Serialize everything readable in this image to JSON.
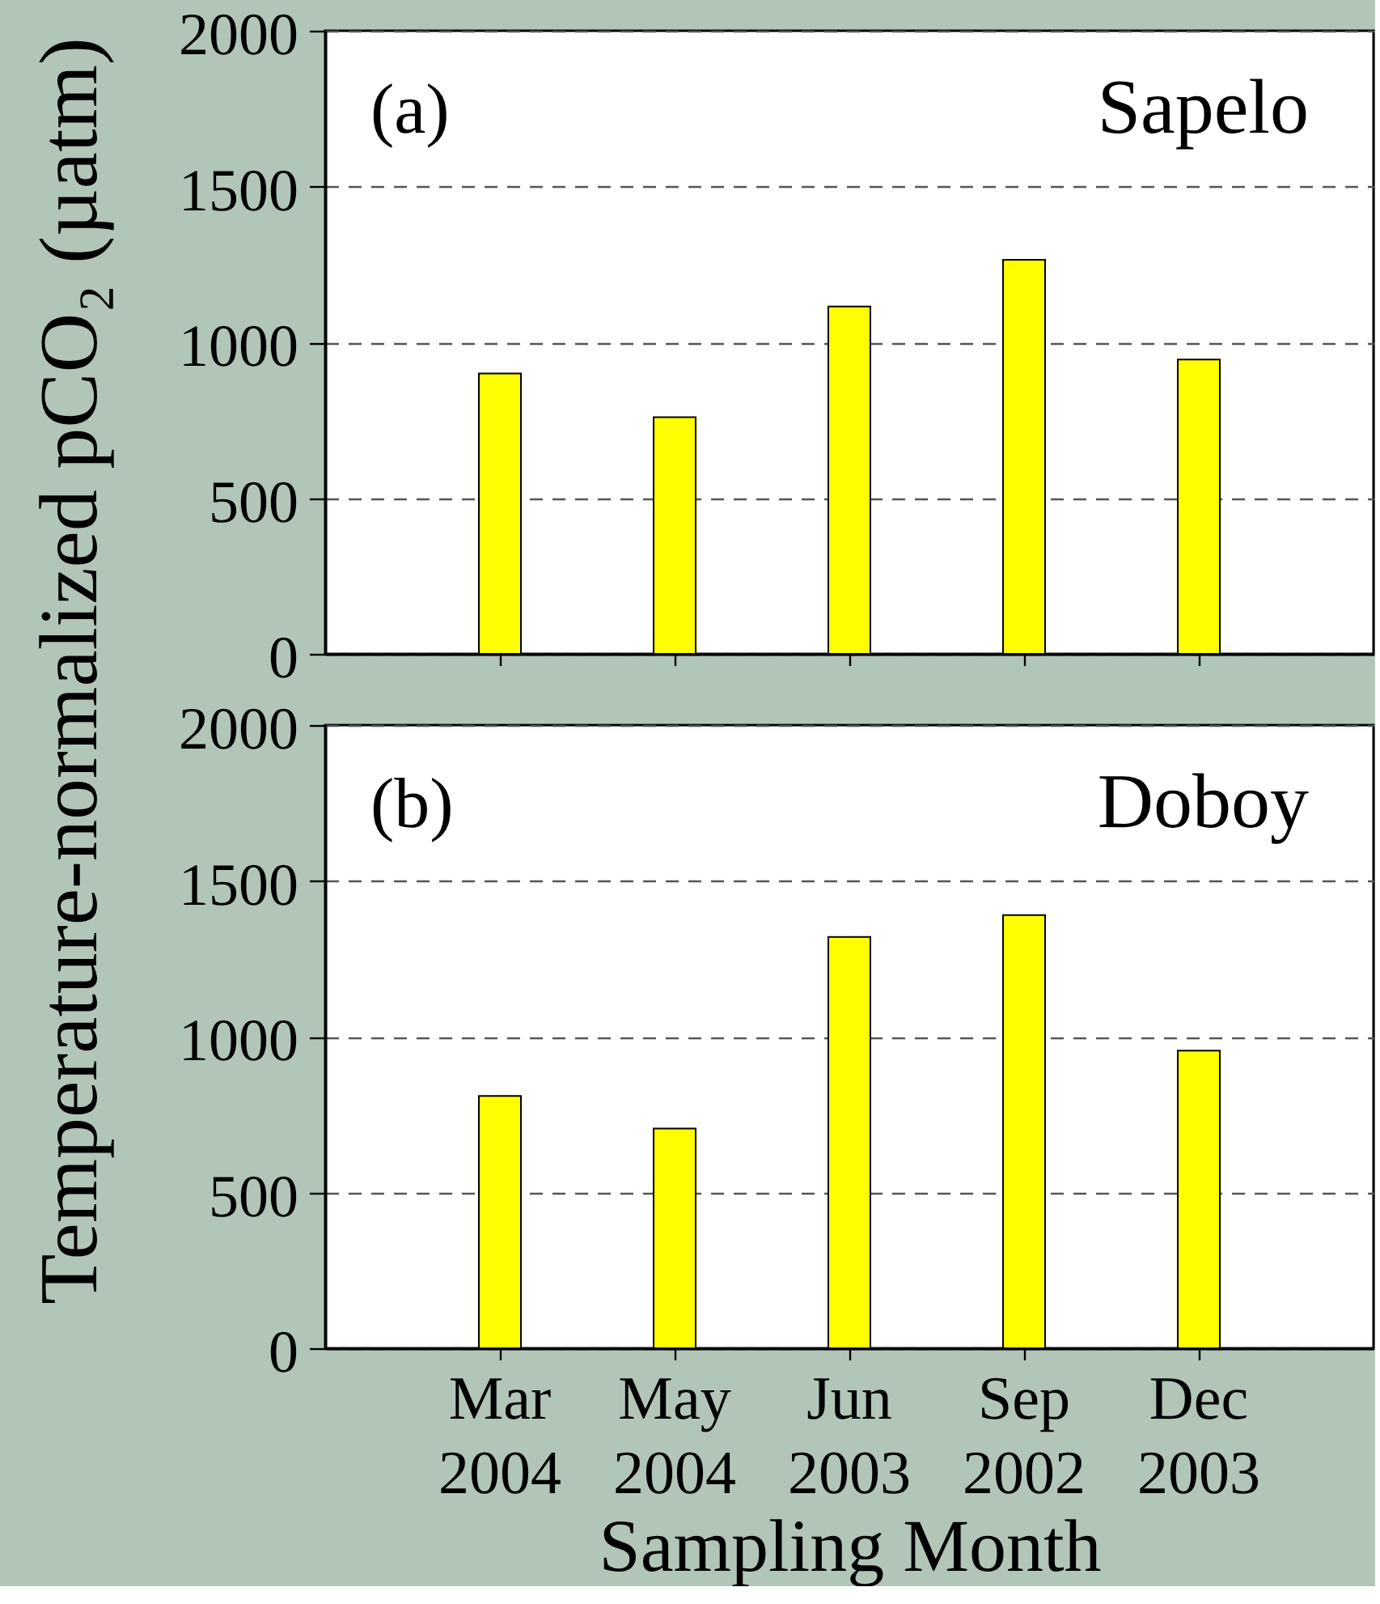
{
  "chart_data": [
    {
      "type": "bar",
      "title": "Sapelo",
      "annotations": [
        "(a)"
      ],
      "ylabel": "Temperature-normalized pCO₂ (µatm)",
      "categories": [
        null,
        null,
        null,
        null,
        null
      ],
      "values": [
        900,
        760,
        1115,
        1265,
        945
      ],
      "color": "#ffff00",
      "ylim": [
        0,
        2000
      ],
      "yticks": [
        0,
        500,
        1000,
        1500,
        2000
      ],
      "grid": "y",
      "tick_labels": "y"
    },
    {
      "type": "bar",
      "title": "Doboy",
      "annotations": [
        "(b)"
      ],
      "xlabel": "Sampling Month",
      "categories": [
        "Mar 2004",
        "May 2004",
        "Jun 2003",
        "Sep 2002",
        "Dec 2003"
      ],
      "values": [
        810,
        705,
        1320,
        1390,
        955
      ],
      "color": "#ffff00",
      "ylim": [
        0,
        2000
      ],
      "yticks": [
        0,
        500,
        1000,
        1500,
        2000
      ],
      "grid": "y"
    }
  ]
}
